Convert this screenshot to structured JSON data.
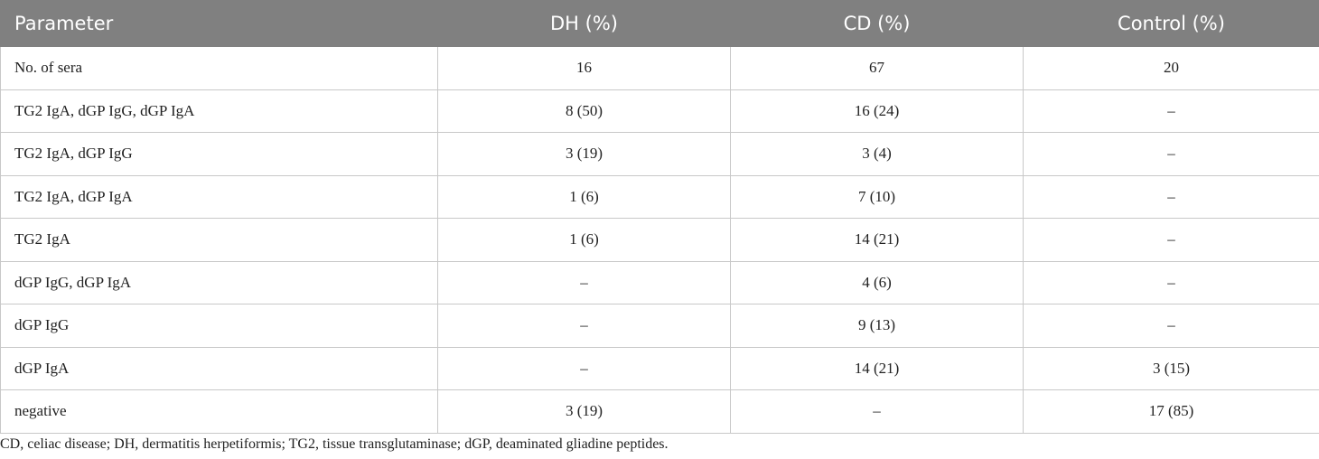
{
  "table": {
    "header": [
      "Parameter",
      "DH (%)",
      "CD (%)",
      "Control (%)"
    ],
    "rows": [
      [
        "No. of sera",
        "16",
        "67",
        "20"
      ],
      [
        "TG2 IgA, dGP IgG, dGP IgA",
        "8 (50)",
        "16 (24)",
        "–"
      ],
      [
        "TG2 IgA, dGP IgG",
        "3 (19)",
        "3 (4)",
        "–"
      ],
      [
        "TG2 IgA, dGP IgA",
        "1 (6)",
        "7 (10)",
        "–"
      ],
      [
        "TG2 IgA",
        "1 (6)",
        "14 (21)",
        "–"
      ],
      [
        "dGP IgG, dGP IgA",
        "–",
        "4 (6)",
        "–"
      ],
      [
        "dGP IgG",
        "–",
        "9 (13)",
        "–"
      ],
      [
        "dGP IgA",
        "–",
        "14 (21)",
        "3 (15)"
      ],
      [
        "negative",
        "3 (19)",
        "–",
        "17 (85)"
      ]
    ],
    "footnote": "CD, celiac disease; DH, dermatitis herpetiformis; TG2, tissue transglutaminase; dGP, deaminated gliadine peptides."
  }
}
